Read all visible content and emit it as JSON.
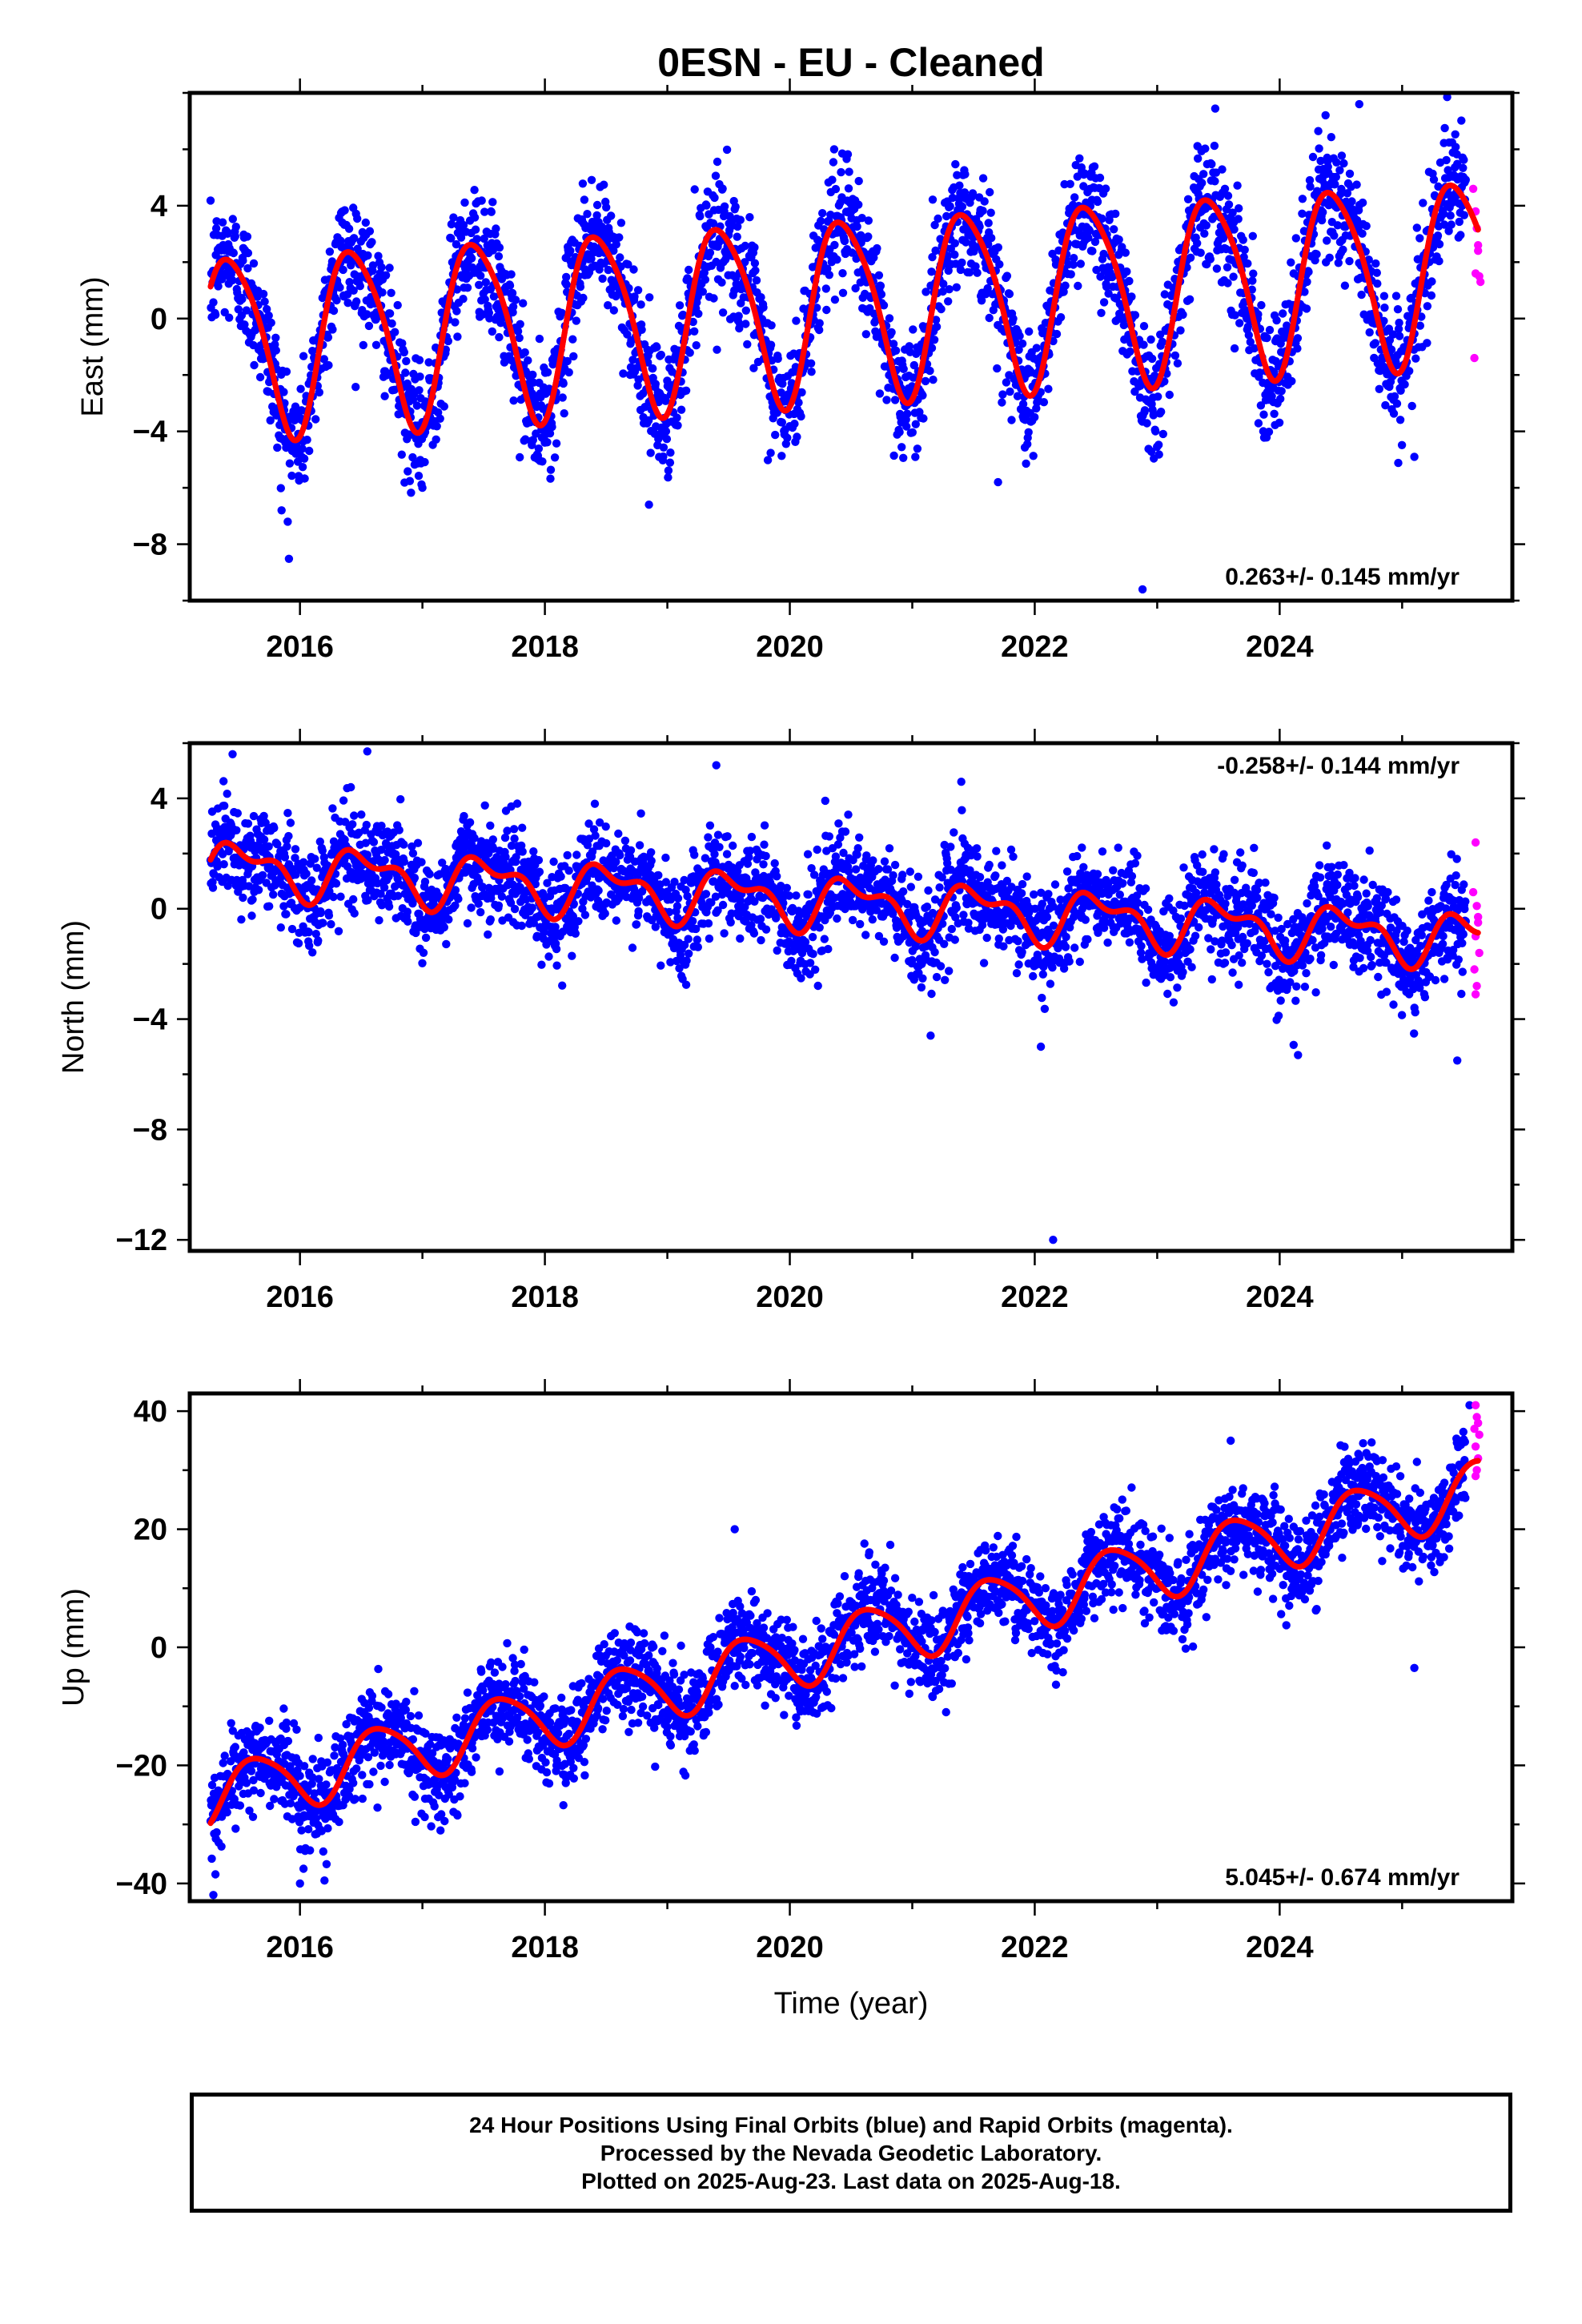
{
  "colors": {
    "final": "#0000ff",
    "rapid": "#ff00ff",
    "fit": "#ff0000",
    "frame": "#000000"
  },
  "chart_data": [
    {
      "type": "scatter",
      "title": "0ESN  - EU - Cleaned",
      "ylabel": "East (mm)",
      "xlabel": "",
      "rate_label": "0.263+/- 0.145 mm/yr",
      "rate_position": "bottom-right",
      "xlim": [
        2015.1,
        2025.9
      ],
      "ylim": [
        -10,
        8
      ],
      "xticks": [
        2016,
        2018,
        2020,
        2022,
        2024
      ],
      "yticks": [
        4,
        0,
        -4,
        -8
      ],
      "ytick_labels": [
        "4",
        "0",
        "−4",
        "−8"
      ],
      "series": [
        {
          "name": "Final Orbits (blue)",
          "color": "#0000ff",
          "model": {
            "offset": -0.9,
            "trend": 0.263,
            "annual_amp": 3.2,
            "annual_phase": 2015.19,
            "semi_amp": 0.5,
            "noise": 1.1
          },
          "outliers": [
            [
              2015.9,
              -7.2
            ],
            [
              2015.85,
              -6.8
            ],
            [
              2017.0,
              -6.0
            ],
            [
              2018.85,
              -6.6
            ],
            [
              2021.7,
              -5.8
            ],
            [
              2022.88,
              -9.6
            ],
            [
              2024.65,
              7.6
            ],
            [
              2025.1,
              -4.9
            ]
          ]
        },
        {
          "name": "Rapid Orbits (magenta)",
          "color": "#ff00ff",
          "points": [
            [
              2025.58,
              4.6
            ],
            [
              2025.6,
              3.8
            ],
            [
              2025.61,
              3.2
            ],
            [
              2025.62,
              2.6
            ],
            [
              2025.63,
              1.5
            ],
            [
              2025.64,
              1.3
            ],
            [
              2025.6,
              1.6
            ],
            [
              2025.59,
              -1.4
            ],
            [
              2025.62,
              2.4
            ]
          ]
        },
        {
          "name": "Fit",
          "color": "#ff0000",
          "kind": "line",
          "model": {
            "offset": -0.9,
            "trend": 0.263,
            "annual_amp": 3.2,
            "annual_phase": 2015.19,
            "semi_amp": 0.5
          }
        }
      ]
    },
    {
      "type": "scatter",
      "ylabel": "North (mm)",
      "xlabel": "",
      "rate_label": "-0.258+/- 0.144 mm/yr",
      "rate_position": "top-right",
      "xlim": [
        2015.1,
        2025.9
      ],
      "ylim": [
        -12.4,
        6
      ],
      "xticks": [
        2016,
        2018,
        2020,
        2022,
        2024
      ],
      "yticks": [
        4,
        0,
        -4,
        -8,
        -12
      ],
      "ytick_labels": [
        "4",
        "0",
        "−4",
        "−8",
        "−12"
      ],
      "series": [
        {
          "name": "Final Orbits (blue)",
          "color": "#0000ff",
          "model": {
            "offset": 1.55,
            "trend": -0.258,
            "annual_amp": 0.8,
            "annual_phase": 2015.28,
            "semi_amp": 0.45,
            "noise": 0.9
          },
          "outliers": [
            [
              2015.45,
              5.6
            ],
            [
              2016.55,
              5.7
            ],
            [
              2019.4,
              5.2
            ],
            [
              2021.4,
              4.6
            ],
            [
              2022.15,
              -12.0
            ],
            [
              2022.05,
              -5.0
            ],
            [
              2024.15,
              -5.3
            ],
            [
              2025.45,
              -5.5
            ],
            [
              2021.15,
              -4.6
            ]
          ]
        },
        {
          "name": "Rapid Orbits (magenta)",
          "color": "#ff00ff",
          "points": [
            [
              2025.6,
              2.4
            ],
            [
              2025.58,
              0.6
            ],
            [
              2025.61,
              0.1
            ],
            [
              2025.62,
              -0.5
            ],
            [
              2025.6,
              -1.0
            ],
            [
              2025.63,
              -1.6
            ],
            [
              2025.59,
              -2.2
            ],
            [
              2025.61,
              -2.8
            ],
            [
              2025.6,
              -3.1
            ],
            [
              2025.62,
              -0.3
            ]
          ]
        },
        {
          "name": "Fit",
          "color": "#ff0000",
          "kind": "line",
          "model": {
            "offset": 1.55,
            "trend": -0.258,
            "annual_amp": 0.8,
            "annual_phase": 2015.28,
            "semi_amp": 0.45
          }
        }
      ]
    },
    {
      "type": "scatter",
      "ylabel": "Up (mm)",
      "xlabel": "Time (year)",
      "rate_label": "5.045+/- 0.674 mm/yr",
      "rate_position": "bottom-right",
      "xlim": [
        2015.1,
        2025.9
      ],
      "ylim": [
        -43,
        43
      ],
      "xticks": [
        2016,
        2018,
        2020,
        2022,
        2024
      ],
      "yticks": [
        40,
        20,
        0,
        -20,
        -40
      ],
      "ytick_labels": [
        "40",
        "20",
        "0",
        "−20",
        "−40"
      ],
      "series": [
        {
          "name": "Final Orbits (blue)",
          "color": "#0000ff",
          "model": {
            "offset": -25.5,
            "trend": 5.045,
            "annual_amp": 5.2,
            "annual_phase": 2015.4,
            "semi_amp": 0.8,
            "noise": 3.8
          },
          "outliers": [
            [
              2016.0,
              -40.0
            ],
            [
              2016.2,
              -39.5
            ],
            [
              2019.55,
              20.0
            ],
            [
              2023.6,
              35.0
            ],
            [
              2025.55,
              41.0
            ],
            [
              2025.1,
              -3.5
            ]
          ]
        },
        {
          "name": "Rapid Orbits (magenta)",
          "color": "#ff00ff",
          "points": [
            [
              2025.6,
              41.0
            ],
            [
              2025.61,
              39.0
            ],
            [
              2025.62,
              38.0
            ],
            [
              2025.59,
              37.0
            ],
            [
              2025.63,
              36.0
            ],
            [
              2025.6,
              34.0
            ],
            [
              2025.62,
              32.0
            ],
            [
              2025.61,
              30.0
            ],
            [
              2025.6,
              29.0
            ]
          ]
        },
        {
          "name": "Fit",
          "color": "#ff0000",
          "kind": "line",
          "model": {
            "offset": -25.5,
            "trend": 5.045,
            "annual_amp": 5.2,
            "annual_phase": 2015.4,
            "semi_amp": 0.8
          }
        }
      ]
    }
  ],
  "footer": {
    "line1": "24 Hour Positions Using Final Orbits (blue) and Rapid Orbits (magenta).",
    "line2": "Processed by the Nevada Geodetic Laboratory.",
    "line3": "Plotted on 2025-Aug-23. Last data on 2025-Aug-18."
  }
}
